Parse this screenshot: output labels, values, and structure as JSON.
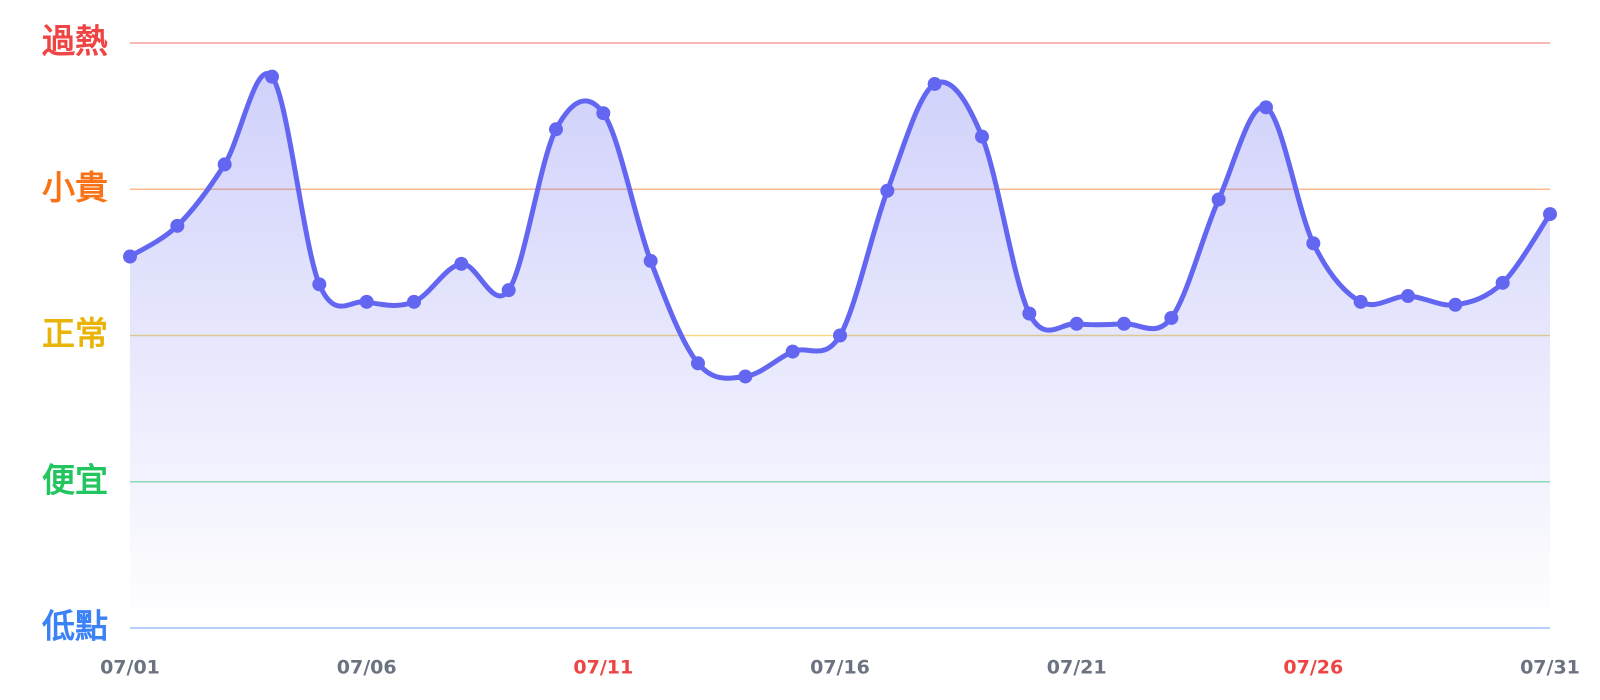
{
  "chart_data": {
    "type": "line",
    "categories": [
      "07/01",
      null,
      null,
      null,
      null,
      "07/06",
      null,
      null,
      null,
      null,
      "07/11",
      null,
      null,
      null,
      null,
      "07/16",
      null,
      null,
      null,
      null,
      "07/21",
      null,
      null,
      null,
      null,
      "07/26",
      null,
      null,
      null,
      null,
      "07/31"
    ],
    "category_colors": [
      "#6b7280",
      "#6b7280",
      "#6b7280",
      "#6b7280",
      "#6b7280",
      "#6b7280",
      "#6b7280",
      "#6b7280",
      "#6b7280",
      "#6b7280",
      "#ef4444",
      "#6b7280",
      "#6b7280",
      "#6b7280",
      "#6b7280",
      "#6b7280",
      "#6b7280",
      "#6b7280",
      "#6b7280",
      "#6b7280",
      "#6b7280",
      "#6b7280",
      "#6b7280",
      "#6b7280",
      "#6b7280",
      "#ef4444",
      "#6b7280",
      "#6b7280",
      "#6b7280",
      "#6b7280",
      "#6b7280"
    ],
    "values": [
      2.54,
      2.75,
      3.17,
      3.77,
      2.35,
      2.23,
      2.23,
      2.49,
      2.31,
      3.41,
      3.52,
      2.51,
      1.81,
      1.72,
      1.89,
      2.0,
      2.99,
      3.72,
      3.36,
      2.15,
      2.08,
      2.08,
      2.12,
      2.93,
      3.56,
      2.63,
      2.23,
      2.27,
      2.21,
      2.36,
      2.83
    ],
    "color": "#6366f1",
    "ylim": [
      0,
      4
    ],
    "yticks": [
      {
        "value": 0,
        "label": "低點"
      },
      {
        "value": 1,
        "label": "便宜"
      },
      {
        "value": 2,
        "label": "正常"
      },
      {
        "value": 3,
        "label": "小貴"
      },
      {
        "value": 4,
        "label": "過熱"
      }
    ],
    "ytick_colors": [
      "#3b82f6",
      "#22c55e",
      "#eab308",
      "#f97316",
      "#ef4444"
    ],
    "grid": true
  }
}
